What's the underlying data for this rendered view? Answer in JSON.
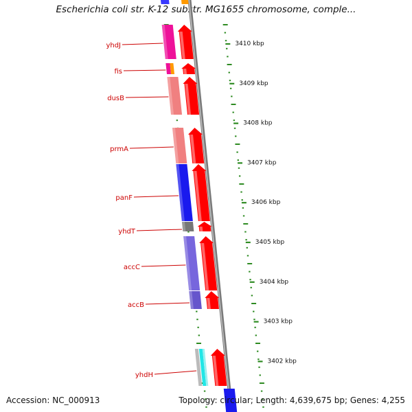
{
  "title": "Escherichia coli str. K-12 substr. MG1655 chromosome, comple...",
  "footer": {
    "accession": "Accession: NC_000913",
    "summary": "Topology: circular; Length: 4,639,675 bp; Genes: 4,255"
  },
  "colors": {
    "forward_cds": "#ff0000",
    "backbone": "#909090",
    "tick_major": "#2e8b22",
    "tick_minor": "#2aa02a",
    "label": "#cc0000"
  },
  "scale_labels": [
    "3410 kbp",
    "3409 kbp",
    "3408 kbp",
    "3407 kbp",
    "3406 kbp",
    "3405 kbp",
    "3404 kbp",
    "3403 kbp",
    "3402 kbp"
  ],
  "gene_labels": [
    "yhdJ",
    "fis",
    "dusB",
    "prmA",
    "panF",
    "yhdT",
    "accC",
    "accB",
    "yhdH"
  ]
}
